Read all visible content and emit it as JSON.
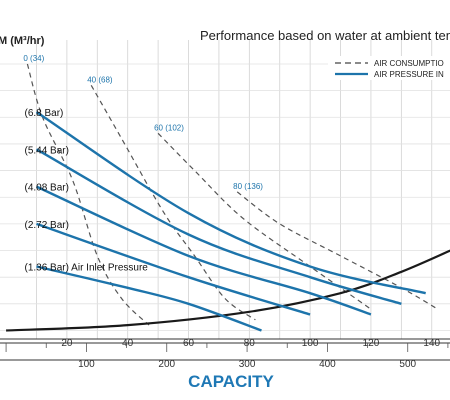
{
  "chart_data": {
    "type": "line",
    "title": "Performance based on water at ambient tem",
    "ylabel": "M (M³/hr)",
    "xlabel": "CAPACITY",
    "x_ticks_gpm": [
      20,
      40,
      60,
      80,
      100,
      120,
      140
    ],
    "x_ticks_lpm": [
      100,
      200,
      300,
      400,
      500
    ],
    "legend": [
      {
        "label": "AIR CONSUMPTIO",
        "style": "dashed"
      },
      {
        "label": "AIR PRESSURE IN",
        "style": "solid"
      }
    ],
    "pressure_curves": [
      {
        "label": "(6.8 Bar)",
        "points": [
          [
            10,
            41
          ],
          [
            60,
            22
          ],
          [
            100,
            12
          ],
          [
            138,
            7
          ]
        ]
      },
      {
        "label": "(5.44 Bar)",
        "points": [
          [
            10,
            34
          ],
          [
            60,
            18
          ],
          [
            100,
            10
          ],
          [
            130,
            5
          ]
        ]
      },
      {
        "label": "(4.08 Bar)",
        "points": [
          [
            10,
            27
          ],
          [
            60,
            14
          ],
          [
            100,
            7
          ],
          [
            120,
            3
          ]
        ]
      },
      {
        "label": "(2.72 Bar)",
        "points": [
          [
            10,
            20
          ],
          [
            60,
            10
          ],
          [
            100,
            3
          ]
        ]
      },
      {
        "label": "(1.36 Bar) Air Inlet Pressure",
        "points": [
          [
            10,
            12
          ],
          [
            40,
            8
          ],
          [
            60,
            5
          ],
          [
            84,
            0
          ]
        ]
      }
    ],
    "air_consumption": [
      {
        "label": "0 (34)",
        "points": [
          [
            7,
            50
          ],
          [
            12,
            40
          ],
          [
            22,
            28
          ],
          [
            30,
            14
          ],
          [
            38,
            6
          ],
          [
            47,
            1
          ]
        ]
      },
      {
        "label": "40 (68)",
        "points": [
          [
            28,
            46
          ],
          [
            38,
            36
          ],
          [
            52,
            22
          ],
          [
            62,
            14
          ],
          [
            72,
            6
          ],
          [
            82,
            2
          ]
        ]
      },
      {
        "label": "60 (102)",
        "points": [
          [
            50,
            37
          ],
          [
            62,
            30
          ],
          [
            78,
            21
          ],
          [
            100,
            12
          ],
          [
            120,
            4
          ]
        ]
      },
      {
        "label": "80 (136)",
        "points": [
          [
            76,
            26
          ],
          [
            90,
            20
          ],
          [
            110,
            14
          ],
          [
            130,
            8
          ],
          [
            142,
            4
          ]
        ]
      }
    ],
    "system_curve": {
      "points": [
        [
          0,
          0
        ],
        [
          40,
          1
        ],
        [
          80,
          3.5
        ],
        [
          110,
          7
        ],
        [
          130,
          11
        ],
        [
          150,
          16
        ]
      ]
    },
    "x_range_gpm": [
      -2,
      146
    ],
    "y_range": [
      -1.6,
      53
    ]
  }
}
